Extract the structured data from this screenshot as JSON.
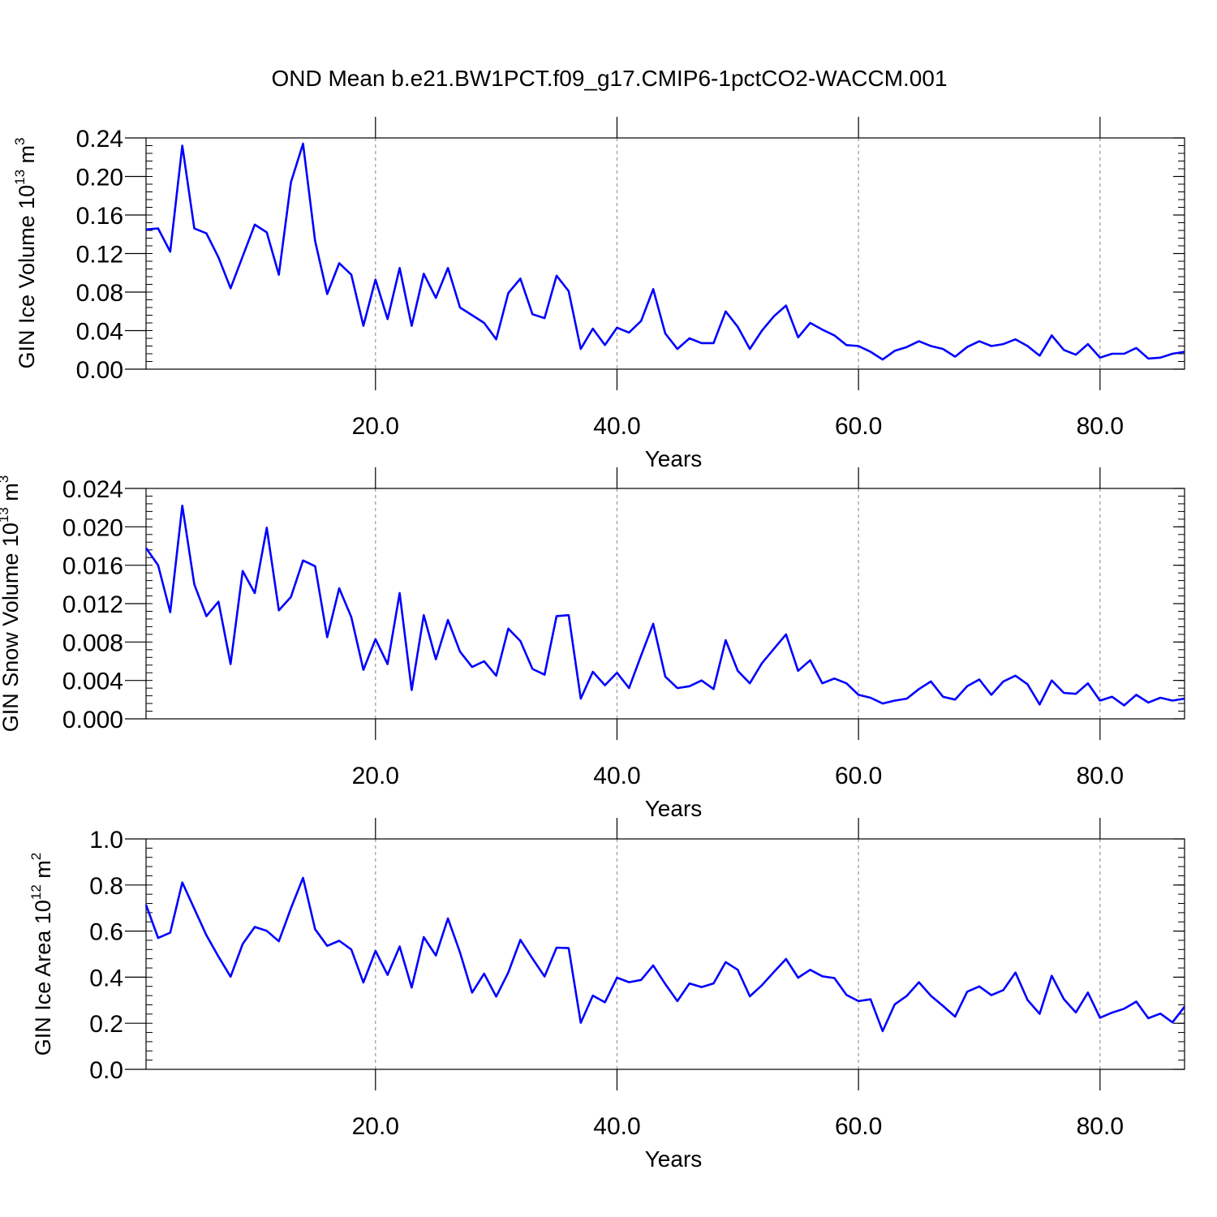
{
  "title": "OND Mean b.e21.BW1PCT.f09_g17.CMIP6-1pctCO2-WACCM.001",
  "line_color": "#0000ff",
  "grid_color": "#999999",
  "chart_data": [
    {
      "type": "line",
      "ylabel": "GIN Ice Volume 10",
      "ylabel_sup1": "13",
      "ylabel_mid": " m",
      "ylabel_sup2": "3",
      "xlabel": "Years",
      "xlim": [
        1,
        87
      ],
      "ylim": [
        0,
        0.24
      ],
      "xticks": [
        20,
        40,
        60,
        80
      ],
      "xtick_labels": [
        "20.0",
        "40.0",
        "60.0",
        "80.0"
      ],
      "yticks": [
        0,
        0.04,
        0.08,
        0.12,
        0.16,
        0.2,
        0.24
      ],
      "ytick_labels": [
        "0.00",
        "0.04",
        "0.08",
        "0.12",
        "0.16",
        "0.20",
        "0.24"
      ],
      "y_minor_step": 0.008,
      "grid": "dashed vertical at x ticks",
      "x": [
        1,
        2,
        3,
        4,
        5,
        6,
        7,
        8,
        9,
        10,
        11,
        12,
        13,
        14,
        15,
        16,
        17,
        18,
        19,
        20,
        21,
        22,
        23,
        24,
        25,
        26,
        27,
        28,
        29,
        30,
        31,
        32,
        33,
        34,
        35,
        36,
        37,
        38,
        39,
        40,
        41,
        42,
        43,
        44,
        45,
        46,
        47,
        48,
        49,
        50,
        51,
        52,
        53,
        54,
        55,
        56,
        57,
        58,
        59,
        60,
        61,
        62,
        63,
        64,
        65,
        66,
        67,
        68,
        69,
        70,
        71,
        72,
        73,
        74,
        75,
        76,
        77,
        78,
        79,
        80,
        81,
        82,
        83,
        84,
        85,
        86,
        87
      ],
      "series": [
        {
          "values": [
            0.145,
            0.146,
            0.122,
            0.232,
            0.146,
            0.141,
            0.116,
            0.084,
            0.117,
            0.15,
            0.142,
            0.098,
            0.194,
            0.234,
            0.133,
            0.078,
            0.11,
            0.098,
            0.045,
            0.093,
            0.052,
            0.105,
            0.045,
            0.099,
            0.074,
            0.105,
            0.064,
            0.056,
            0.048,
            0.031,
            0.079,
            0.094,
            0.057,
            0.053,
            0.097,
            0.081,
            0.021,
            0.042,
            0.025,
            0.043,
            0.038,
            0.05,
            0.083,
            0.037,
            0.021,
            0.032,
            0.027,
            0.027,
            0.06,
            0.044,
            0.021,
            0.04,
            0.055,
            0.066,
            0.033,
            0.048,
            0.041,
            0.035,
            0.025,
            0.024,
            0.018,
            0.01,
            0.019,
            0.023,
            0.029,
            0.024,
            0.021,
            0.013,
            0.023,
            0.029,
            0.024,
            0.026,
            0.031,
            0.024,
            0.014,
            0.035,
            0.02,
            0.015,
            0.026,
            0.012,
            0.016,
            0.016,
            0.022,
            0.011,
            0.012,
            0.016,
            0.018
          ]
        }
      ]
    },
    {
      "type": "line",
      "ylabel": "GIN Snow Volume 10",
      "ylabel_sup1": "13",
      "ylabel_mid": " m",
      "ylabel_sup2": "3",
      "xlabel": "Years",
      "xlim": [
        1,
        87
      ],
      "ylim": [
        0,
        0.024
      ],
      "xticks": [
        20,
        40,
        60,
        80
      ],
      "xtick_labels": [
        "20.0",
        "40.0",
        "60.0",
        "80.0"
      ],
      "yticks": [
        0,
        0.004,
        0.008,
        0.012,
        0.016,
        0.02,
        0.024
      ],
      "ytick_labels": [
        "0.000",
        "0.004",
        "0.008",
        "0.012",
        "0.016",
        "0.020",
        "0.024"
      ],
      "y_minor_step": 0.0008,
      "grid": "dashed vertical at x ticks",
      "x": [
        1,
        2,
        3,
        4,
        5,
        6,
        7,
        8,
        9,
        10,
        11,
        12,
        13,
        14,
        15,
        16,
        17,
        18,
        19,
        20,
        21,
        22,
        23,
        24,
        25,
        26,
        27,
        28,
        29,
        30,
        31,
        32,
        33,
        34,
        35,
        36,
        37,
        38,
        39,
        40,
        41,
        42,
        43,
        44,
        45,
        46,
        47,
        48,
        49,
        50,
        51,
        52,
        53,
        54,
        55,
        56,
        57,
        58,
        59,
        60,
        61,
        62,
        63,
        64,
        65,
        66,
        67,
        68,
        69,
        70,
        71,
        72,
        73,
        74,
        75,
        76,
        77,
        78,
        79,
        80,
        81,
        82,
        83,
        84,
        85,
        86,
        87
      ],
      "series": [
        {
          "values": [
            0.0178,
            0.016,
            0.0111,
            0.0222,
            0.014,
            0.0107,
            0.0122,
            0.0057,
            0.0154,
            0.0131,
            0.0199,
            0.0113,
            0.0127,
            0.0165,
            0.0159,
            0.0085,
            0.0136,
            0.0106,
            0.0051,
            0.0083,
            0.0057,
            0.0131,
            0.003,
            0.0108,
            0.0062,
            0.0103,
            0.007,
            0.0054,
            0.006,
            0.0045,
            0.0094,
            0.0081,
            0.0052,
            0.0046,
            0.0107,
            0.0108,
            0.0021,
            0.0049,
            0.0035,
            0.0048,
            0.0032,
            0.0066,
            0.0099,
            0.0044,
            0.0032,
            0.0034,
            0.004,
            0.0031,
            0.0082,
            0.005,
            0.0037,
            0.0058,
            0.0073,
            0.0088,
            0.005,
            0.0061,
            0.0037,
            0.0042,
            0.0037,
            0.0025,
            0.0022,
            0.0016,
            0.0019,
            0.0021,
            0.0031,
            0.0039,
            0.0023,
            0.002,
            0.0034,
            0.0041,
            0.0025,
            0.0039,
            0.0045,
            0.0036,
            0.0015,
            0.004,
            0.0027,
            0.0026,
            0.0037,
            0.0019,
            0.0023,
            0.0014,
            0.0025,
            0.0017,
            0.0022,
            0.0019,
            0.0021
          ]
        }
      ]
    },
    {
      "type": "line",
      "ylabel": "GIN Ice Area 10",
      "ylabel_sup1": "12",
      "ylabel_mid": " m",
      "ylabel_sup2": "2",
      "xlabel": "Years",
      "xlim": [
        1,
        87
      ],
      "ylim": [
        0,
        1.0
      ],
      "xticks": [
        20,
        40,
        60,
        80
      ],
      "xtick_labels": [
        "20.0",
        "40.0",
        "60.0",
        "80.0"
      ],
      "yticks": [
        0,
        0.2,
        0.4,
        0.6,
        0.8,
        1.0
      ],
      "ytick_labels": [
        "0.0",
        "0.2",
        "0.4",
        "0.6",
        "0.8",
        "1.0"
      ],
      "y_minor_step": 0.04,
      "grid": "dashed vertical at x ticks",
      "x": [
        1,
        2,
        3,
        4,
        5,
        6,
        7,
        8,
        9,
        10,
        11,
        12,
        13,
        14,
        15,
        16,
        17,
        18,
        19,
        20,
        21,
        22,
        23,
        24,
        25,
        26,
        27,
        28,
        29,
        30,
        31,
        32,
        33,
        34,
        35,
        36,
        37,
        38,
        39,
        40,
        41,
        42,
        43,
        44,
        45,
        46,
        47,
        48,
        49,
        50,
        51,
        52,
        53,
        54,
        55,
        56,
        57,
        58,
        59,
        60,
        61,
        62,
        63,
        64,
        65,
        66,
        67,
        68,
        69,
        70,
        71,
        72,
        73,
        74,
        75,
        76,
        77,
        78,
        79,
        80,
        81,
        82,
        83,
        84,
        85,
        86,
        87
      ],
      "series": [
        {
          "values": [
            0.714,
            0.57,
            0.593,
            0.811,
            0.697,
            0.582,
            0.489,
            0.402,
            0.544,
            0.618,
            0.601,
            0.556,
            0.699,
            0.831,
            0.608,
            0.536,
            0.558,
            0.52,
            0.377,
            0.514,
            0.41,
            0.533,
            0.355,
            0.574,
            0.494,
            0.655,
            0.507,
            0.333,
            0.415,
            0.316,
            0.42,
            0.562,
            0.481,
            0.403,
            0.528,
            0.526,
            0.202,
            0.32,
            0.291,
            0.398,
            0.378,
            0.388,
            0.451,
            0.37,
            0.296,
            0.373,
            0.357,
            0.373,
            0.465,
            0.432,
            0.317,
            0.365,
            0.423,
            0.479,
            0.398,
            0.432,
            0.404,
            0.396,
            0.323,
            0.296,
            0.304,
            0.166,
            0.282,
            0.319,
            0.378,
            0.319,
            0.275,
            0.229,
            0.337,
            0.36,
            0.322,
            0.344,
            0.42,
            0.301,
            0.241,
            0.406,
            0.305,
            0.247,
            0.333,
            0.224,
            0.246,
            0.263,
            0.294,
            0.222,
            0.242,
            0.204,
            0.272
          ]
        }
      ]
    }
  ]
}
